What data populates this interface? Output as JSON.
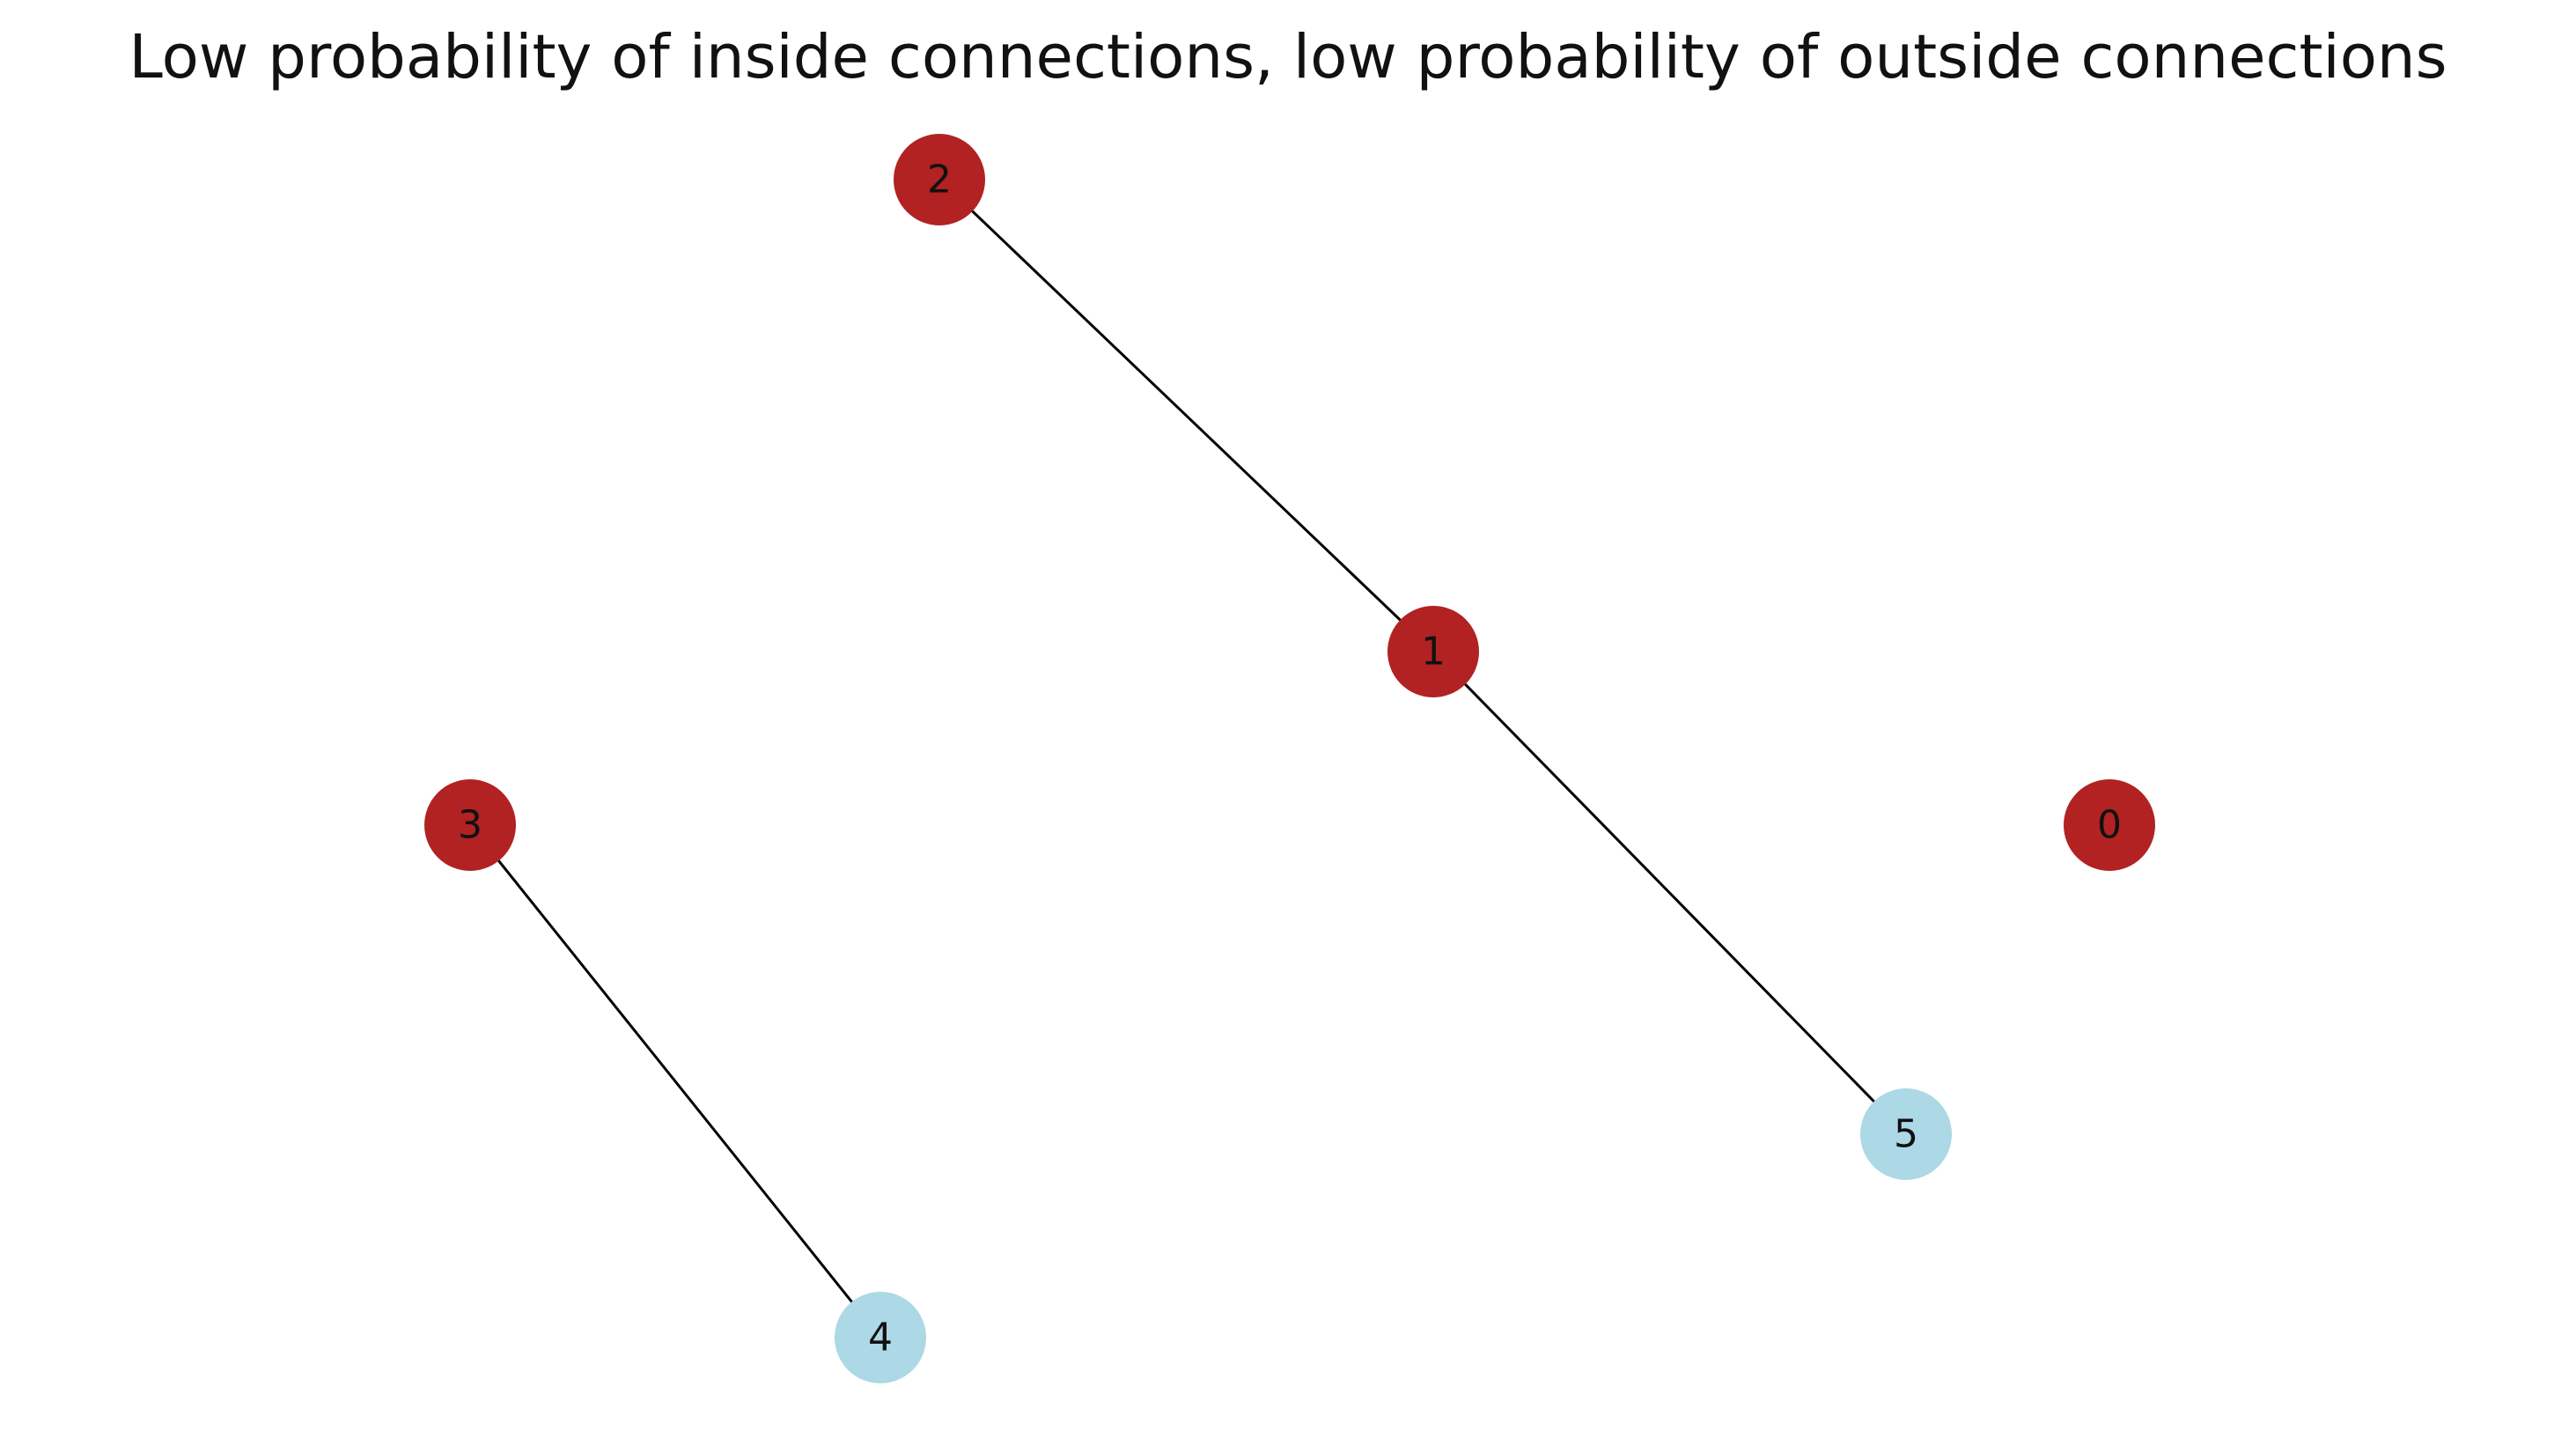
{
  "title": "Low probability of inside connections, low probability of outside connections",
  "colors": {
    "group_a": "#b22222",
    "group_b": "#add8e6",
    "edge": "#000000",
    "label": "#111111"
  },
  "graph": {
    "nodes": [
      {
        "id": "0",
        "label": "0",
        "group": "group_a"
      },
      {
        "id": "1",
        "label": "1",
        "group": "group_a"
      },
      {
        "id": "2",
        "label": "2",
        "group": "group_a"
      },
      {
        "id": "3",
        "label": "3",
        "group": "group_a"
      },
      {
        "id": "4",
        "label": "4",
        "group": "group_b"
      },
      {
        "id": "5",
        "label": "5",
        "group": "group_b"
      }
    ],
    "edges": [
      {
        "source": "2",
        "target": "1"
      },
      {
        "source": "1",
        "target": "5"
      },
      {
        "source": "3",
        "target": "4"
      }
    ]
  }
}
